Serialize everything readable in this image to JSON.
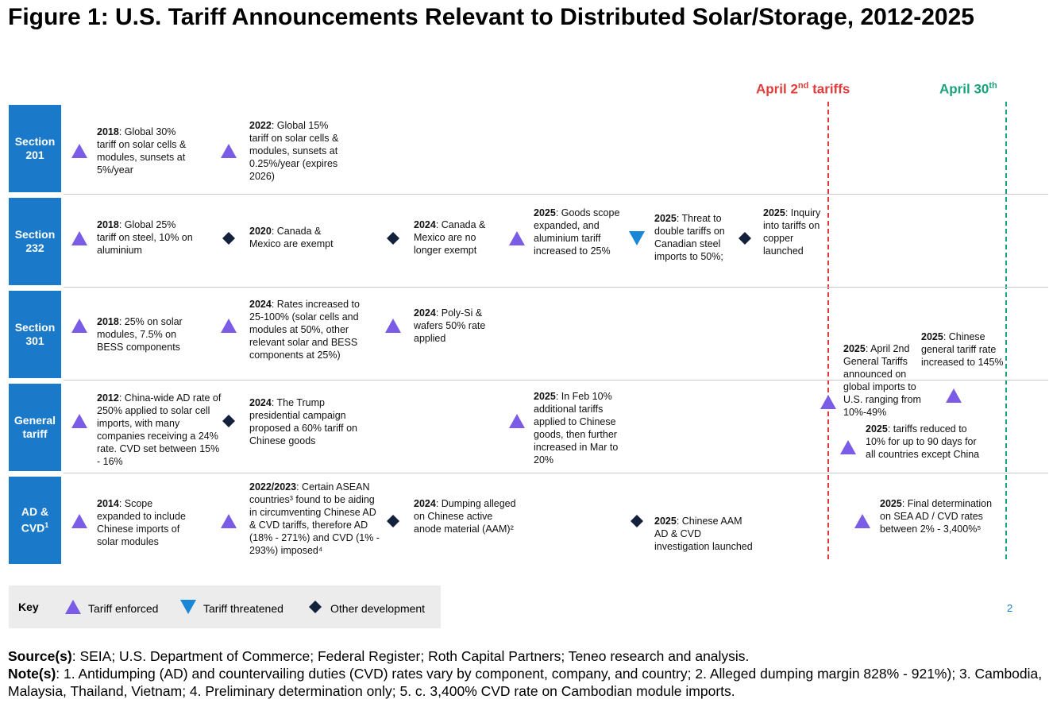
{
  "title": "Figure 1: U.S. Tariff Announcements Relevant to Distributed Solar/Storage, 2012-2025",
  "markers": [
    {
      "label_main": "April 2",
      "label_sup": "nd",
      "label_end": " tariffs",
      "color": "#e03c3c"
    },
    {
      "label_main": "April 30",
      "label_sup": "th",
      "label_end": "",
      "color": "#1aa37a"
    }
  ],
  "rows": [
    {
      "label": "Section 201",
      "sup": ""
    },
    {
      "label": "Section 232",
      "sup": ""
    },
    {
      "label": "Section 301",
      "sup": ""
    },
    {
      "label": "General tariff",
      "sup": ""
    },
    {
      "label": "AD & CVD",
      "sup": "1"
    }
  ],
  "events": [
    {
      "row": 0,
      "symbol": "triangle-up",
      "year": "2018",
      "text": ": Global 30% tariff on solar cells & modules, sunsets at 5%/year",
      "note": ""
    },
    {
      "row": 0,
      "symbol": "triangle-up",
      "year": "2022",
      "text": ": Global 15% tariff on solar cells & modules, sunsets at 0.25%/year (expires 2026)",
      "note": ""
    },
    {
      "row": 1,
      "symbol": "triangle-up",
      "year": "2018",
      "text": ": Global 25% tariff on steel, 10% on aluminium",
      "note": ""
    },
    {
      "row": 1,
      "symbol": "diamond",
      "year": "2020",
      "text": ": Canada & Mexico are exempt",
      "note": ""
    },
    {
      "row": 1,
      "symbol": "diamond",
      "year": "2024",
      "text": ": Canada & Mexico are no longer exempt",
      "note": ""
    },
    {
      "row": 1,
      "symbol": "triangle-up",
      "year": "2025",
      "text": ": Goods scope expanded, and aluminium tariff increased to 25%",
      "note": ""
    },
    {
      "row": 1,
      "symbol": "triangle-down",
      "year": "2025",
      "text": ": Threat to double tariffs on Canadian steel imports to 50%;",
      "note": ""
    },
    {
      "row": 1,
      "symbol": "diamond",
      "year": "2025",
      "text": ": Inquiry into tariffs on copper launched",
      "note": ""
    },
    {
      "row": 2,
      "symbol": "triangle-up",
      "year": "2018",
      "text": ": 25% on solar modules, 7.5% on BESS components",
      "note": ""
    },
    {
      "row": 2,
      "symbol": "triangle-up",
      "year": "2024",
      "text": ": Rates increased to 25-100% (solar cells and modules at 50%, other relevant solar and BESS components at 25%)",
      "note": ""
    },
    {
      "row": 2,
      "symbol": "triangle-up",
      "year": "2024",
      "text": ": Poly-Si & wafers 50% rate applied",
      "note": ""
    },
    {
      "row": 3,
      "symbol": "triangle-up",
      "year": "2012",
      "text": ": China-wide AD rate of 250% applied to solar cell imports, with many companies receiving a 24% rate. CVD set between 15% - 16%",
      "note": ""
    },
    {
      "row": 3,
      "symbol": "diamond",
      "year": "2024",
      "text": ": The Trump presidential campaign proposed a 60% tariff on Chinese goods",
      "note": ""
    },
    {
      "row": 3,
      "symbol": "triangle-up",
      "year": "2025",
      "text": ": In Feb 10% additional tariffs applied to Chinese goods, then further increased in Mar to 20%",
      "note": ""
    },
    {
      "row": 3,
      "symbol": "triangle-up",
      "year": "2025",
      "text": ": April 2nd General Tariffs announced on global imports to U.S. ranging from 10%-49%",
      "note": ""
    },
    {
      "row": 3,
      "symbol": "triangle-up",
      "year": "2025",
      "text": ": Chinese general tariff rate increased to 145%",
      "note": ""
    },
    {
      "row": 3,
      "symbol": "triangle-up",
      "year": "2025",
      "text": ": tariffs reduced to 10% for up to 90 days for all countries except China",
      "note": ""
    },
    {
      "row": 4,
      "symbol": "triangle-up",
      "year": "2014",
      "text": ": Scope expanded to include Chinese imports of solar modules",
      "note": ""
    },
    {
      "row": 4,
      "symbol": "triangle-up",
      "year": "2022/2023",
      "text": ": Certain ASEAN countries³ found to be aiding in circumventing Chinese AD & CVD tariffs, therefore AD (18% - 271%) and CVD (1% - 293%) imposed⁴",
      "note": ""
    },
    {
      "row": 4,
      "symbol": "diamond",
      "year": "2024",
      "text": ": Dumping alleged on Chinese active anode material (AAM)²",
      "note": ""
    },
    {
      "row": 4,
      "symbol": "diamond",
      "year": "2025",
      "text": ": Chinese AAM AD & CVD investigation launched",
      "note": ""
    },
    {
      "row": 4,
      "symbol": "triangle-up",
      "year": "2025",
      "text": ": Final determination on SEA AD / CVD rates between 2% - 3,400%⁵",
      "note": ""
    }
  ],
  "key": {
    "title": "Key",
    "items": [
      {
        "symbol": "triangle-up",
        "label": "Tariff enforced"
      },
      {
        "symbol": "triangle-down",
        "label": "Tariff threatened"
      },
      {
        "symbol": "diamond",
        "label": "Other development"
      }
    ]
  },
  "colors": {
    "row_label_bg": "#1a7ac9",
    "triangle_up": "#7b5ce6",
    "triangle_down": "#1a86d6",
    "diamond": "#14213d"
  },
  "page_number": "2",
  "footer": {
    "source_label": "Source(s)",
    "source_text": ": SEIA; U.S. Department of Commerce; Federal Register; Roth Capital Partners; Teneo research and analysis.",
    "notes_label": "Note(s)",
    "notes_text": ": 1. Antidumping (AD) and countervailing duties (CVD) rates vary by component, company, and country; 2. Alleged dumping margin 828% - 921%); 3. Cambodia, Malaysia, Thailand, Vietnam; 4. Preliminary determination only; 5. c. 3,400% CVD rate on Cambodian module imports."
  }
}
